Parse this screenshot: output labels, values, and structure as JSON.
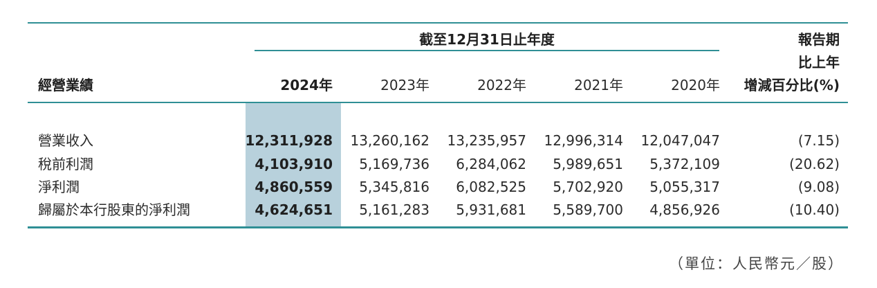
{
  "table": {
    "span_header": "截至12月31日止年度",
    "row_header_label": "經營業績",
    "change_header_lines": [
      "報告期",
      "比上年",
      "增減百分比(%)"
    ],
    "years": [
      "2024年",
      "2023年",
      "2022年",
      "2021年",
      "2020年"
    ],
    "rows": [
      {
        "label": "營業收入",
        "values": [
          "12,311,928",
          "13,260,162",
          "13,235,957",
          "12,996,314",
          "12,047,047"
        ],
        "change": "(7.15)"
      },
      {
        "label": "稅前利潤",
        "values": [
          "4,103,910",
          "5,169,736",
          "6,284,062",
          "5,989,651",
          "5,372,109"
        ],
        "change": "(20.62)"
      },
      {
        "label": "淨利潤",
        "values": [
          "4,860,559",
          "5,345,816",
          "6,082,525",
          "5,702,920",
          "5,055,317"
        ],
        "change": "(9.08)"
      },
      {
        "label": "歸屬於本行股東的淨利潤",
        "values": [
          "4,624,651",
          "5,161,283",
          "5,931,681",
          "5,589,700",
          "4,856,926"
        ],
        "change": "(10.40)"
      }
    ]
  },
  "footer": {
    "unit_note": "（單位：人民幣元／股）"
  },
  "colors": {
    "rule": "#2f8f95",
    "highlight": "#b8d1dc"
  }
}
